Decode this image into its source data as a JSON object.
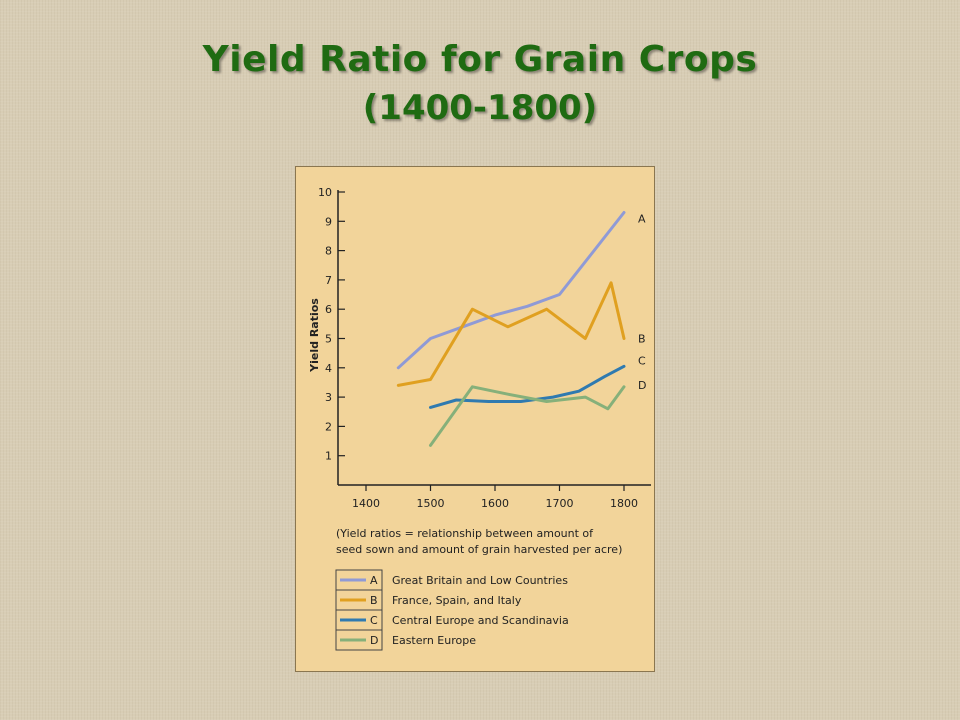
{
  "title": {
    "line1": "Yield Ratio for Grain Crops",
    "line2": "(1400-1800)"
  },
  "chart_data": {
    "type": "line",
    "ylabel": "Yield Ratios",
    "xlabel": "",
    "xlim": [
      1400,
      1800
    ],
    "ylim": [
      0,
      10
    ],
    "x_ticks": [
      1400,
      1500,
      1600,
      1700,
      1800
    ],
    "y_ticks": [
      1,
      2,
      3,
      4,
      5,
      6,
      7,
      8,
      9,
      10
    ],
    "note": [
      "(Yield ratios = relationship between amount of",
      "seed sown and amount of grain harvested per acre)"
    ],
    "legend_position": "bottom",
    "series": [
      {
        "name": "A",
        "legend_label": "Great Britain and Low Countries",
        "color": "#8f9ad6",
        "points": [
          [
            1450,
            4.0
          ],
          [
            1500,
            5.0
          ],
          [
            1550,
            5.4
          ],
          [
            1600,
            5.8
          ],
          [
            1650,
            6.1
          ],
          [
            1700,
            6.5
          ],
          [
            1750,
            7.9
          ],
          [
            1800,
            9.3
          ]
        ]
      },
      {
        "name": "B",
        "legend_label": "France, Spain, and Italy",
        "color": "#e0a020",
        "points": [
          [
            1450,
            3.4
          ],
          [
            1500,
            3.6
          ],
          [
            1565,
            6.0
          ],
          [
            1620,
            5.4
          ],
          [
            1680,
            6.0
          ],
          [
            1740,
            5.0
          ],
          [
            1780,
            6.9
          ],
          [
            1800,
            5.0
          ]
        ]
      },
      {
        "name": "C",
        "legend_label": "Central Europe and Scandinavia",
        "color": "#2f7ab0",
        "points": [
          [
            1500,
            2.65
          ],
          [
            1540,
            2.9
          ],
          [
            1590,
            2.85
          ],
          [
            1640,
            2.85
          ],
          [
            1690,
            3.0
          ],
          [
            1730,
            3.2
          ],
          [
            1770,
            3.7
          ],
          [
            1800,
            4.05
          ]
        ]
      },
      {
        "name": "D",
        "legend_label": "Eastern Europe",
        "color": "#86b07a",
        "points": [
          [
            1500,
            1.35
          ],
          [
            1565,
            3.35
          ],
          [
            1620,
            3.1
          ],
          [
            1680,
            2.85
          ],
          [
            1740,
            3.0
          ],
          [
            1775,
            2.6
          ],
          [
            1800,
            3.35
          ]
        ]
      }
    ]
  }
}
